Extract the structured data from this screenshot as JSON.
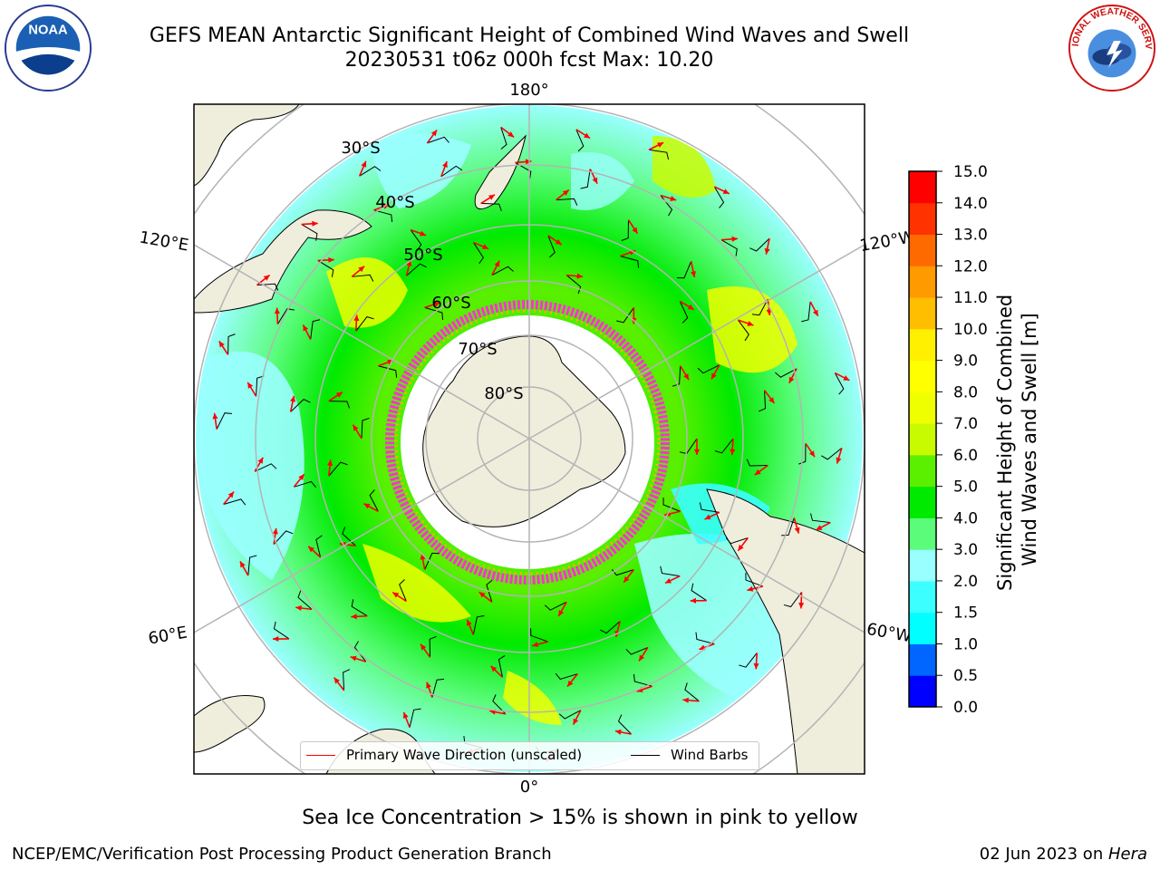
{
  "header": {
    "title_line1": "GEFS MEAN Antarctic Significant Height of Combined Wind Waves and Swell",
    "title_line2": "20230531 t06z 000h fcst   Max: 10.20"
  },
  "logos": {
    "left": "NOAA",
    "right": "NATIONAL WEATHER SERVICE"
  },
  "map": {
    "projection": "south-polar-stereographic",
    "longitude_labels": [
      "180°",
      "120°E",
      "120°W",
      "60°E",
      "60°W",
      "0°"
    ],
    "latitude_labels": [
      "30°S",
      "40°S",
      "50°S",
      "60°S",
      "70°S",
      "80°S"
    ],
    "colors": {
      "land": "#efeedd",
      "ice_edge": "#ff33cc",
      "arrow": "#ff0000",
      "barb": "#000000",
      "grid": "#b4b4b4"
    }
  },
  "colorbar": {
    "label": "Significant Height of Combined Wind Waves and Swell [m]",
    "ticks": [
      "15.0",
      "14.0",
      "13.0",
      "12.0",
      "11.0",
      "10.0",
      "9.0",
      "8.0",
      "7.0",
      "6.0",
      "5.0",
      "4.0",
      "3.0",
      "2.0",
      "1.5",
      "1.0",
      "0.5",
      "0.0"
    ],
    "colors_bottom_to_top": [
      "#0000ff",
      "#0066ff",
      "#00ffff",
      "#3cffff",
      "#9affff",
      "#5afc7a",
      "#00ea00",
      "#5af000",
      "#c8fb00",
      "#f0ff00",
      "#ffff00",
      "#fff000",
      "#ffbe00",
      "#ff9a00",
      "#ff6a00",
      "#ff3200",
      "#ff0000"
    ]
  },
  "legend": {
    "items": [
      "Primary Wave Direction (unscaled)",
      "Wind Barbs"
    ]
  },
  "caption": "Sea Ice Concentration > 15% is shown in pink to yellow",
  "footer": {
    "left": "NCEP/EMC/Verification Post Processing Product Generation Branch",
    "date": "02 Jun 2023 on ",
    "host": "Hera"
  }
}
